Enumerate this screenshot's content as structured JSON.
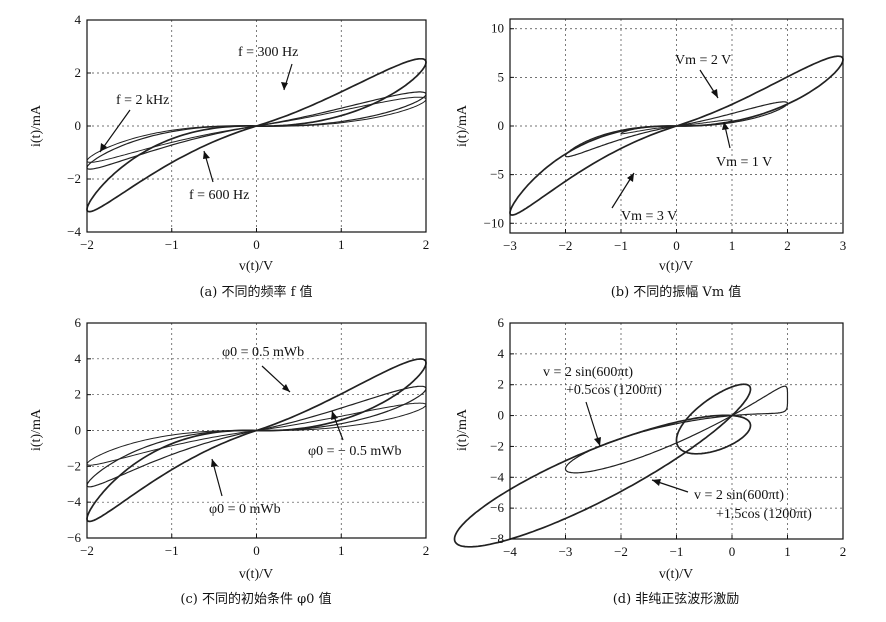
{
  "chart_data": [
    {
      "type": "line",
      "caption": "(a) 不同的频率 f 值",
      "xlabel": "v(t)/V",
      "ylabel": "i(t)/mA",
      "xlim": [
        -2,
        2
      ],
      "ylim": [
        -4,
        4
      ],
      "xticks": [
        "−2",
        "−1",
        "0",
        "1",
        "2"
      ],
      "yticks": [
        "4",
        "2",
        "0",
        "−2",
        "−4"
      ],
      "grid": true,
      "series": [
        {
          "name": "f = 300 Hz",
          "amplitude": 2,
          "peak": 3.7,
          "lobe_x": 1.6
        },
        {
          "name": "f = 600 Hz",
          "amplitude": 2,
          "peak": 1.85,
          "lobe_x": 1.8
        },
        {
          "name": "f = 2 kHz",
          "amplitude": 2,
          "peak": 1.55,
          "lobe_x": 1.95
        }
      ],
      "annotations": [
        "f = 300 Hz",
        "f = 2 kHz",
        "f = 600 Hz"
      ]
    },
    {
      "type": "line",
      "caption": "(b) 不同的振幅 Vm 值",
      "xlabel": "v(t)/V",
      "ylabel": "i(t)/mA",
      "xlim": [
        -3,
        3
      ],
      "ylim": [
        -11,
        11
      ],
      "xticks": [
        "−3",
        "−2",
        "−1",
        "0",
        "1",
        "2",
        "3"
      ],
      "yticks": [
        "10",
        "5",
        "0",
        "−5",
        "−10"
      ],
      "grid": true,
      "series": [
        {
          "name": "Vm = 3 V",
          "amplitude": 3,
          "peak": 10.5,
          "lobe_x": 2.3
        },
        {
          "name": "Vm = 2 V",
          "amplitude": 2,
          "peak": 3.6,
          "lobe_x": 1.7
        },
        {
          "name": "Vm = 1 V",
          "amplitude": 1,
          "peak": 0.9,
          "lobe_x": 0.9
        }
      ],
      "annotations": [
        "Vm = 2 V",
        "Vm = 1 V",
        "Vm = 3 V"
      ]
    },
    {
      "type": "line",
      "caption": "(c) 不同的初始条件 φ0 值",
      "xlabel": "v(t)/V",
      "ylabel": "i(t)/mA",
      "xlim": [
        -2,
        2
      ],
      "ylim": [
        -6,
        6
      ],
      "xticks": [
        "−2",
        "−1",
        "0",
        "1",
        "2"
      ],
      "yticks": [
        "6",
        "4",
        "2",
        "0",
        "−2",
        "−4",
        "−6"
      ],
      "grid": true,
      "series": [
        {
          "name": "φ0 = 0.5 mWb",
          "amplitude": 2,
          "peak": 5.8,
          "lobe_x": 1.65
        },
        {
          "name": "φ0 = 0 mWb",
          "amplitude": 2,
          "peak": 3.6,
          "lobe_x": 1.6
        },
        {
          "name": "φ0 = − 0.5 mWb",
          "amplitude": 2,
          "peak": 2.2,
          "lobe_x": 1.8
        }
      ],
      "annotations": [
        "φ0 = 0.5 mWb",
        "φ0 = − 0.5 mWb",
        "φ0 = 0 mWb"
      ]
    },
    {
      "type": "line",
      "caption": "(d) 非纯正弦波形激励",
      "xlabel": "v(t)/V",
      "ylabel": "i(t)/mA",
      "xlim": [
        -4,
        2
      ],
      "ylim": [
        -8,
        6
      ],
      "xticks": [
        "−4",
        "−3",
        "−2",
        "−1",
        "0",
        "1",
        "2"
      ],
      "yticks": [
        "6",
        "4",
        "2",
        "0",
        "−2",
        "−4",
        "−6",
        "−8"
      ],
      "grid": true,
      "series": [
        {
          "name": "v = 2 sin(600πt) +1.5cos (1200πt)",
          "x_range": [
            -3.5,
            1.75
          ],
          "min": -7.2,
          "max": 5.1
        },
        {
          "name": "v = 2 sin(600πt) +0.5cos (1200πt)",
          "x_range": [
            -2.5,
            1.35
          ],
          "min": -3.8,
          "max": 3.3
        }
      ],
      "annotations": [
        "v = 2 sin(600πt)",
        "+0.5cos (1200πt)",
        "v = 2 sin(600πt)",
        "+1.5cos (1200πt)"
      ]
    }
  ]
}
